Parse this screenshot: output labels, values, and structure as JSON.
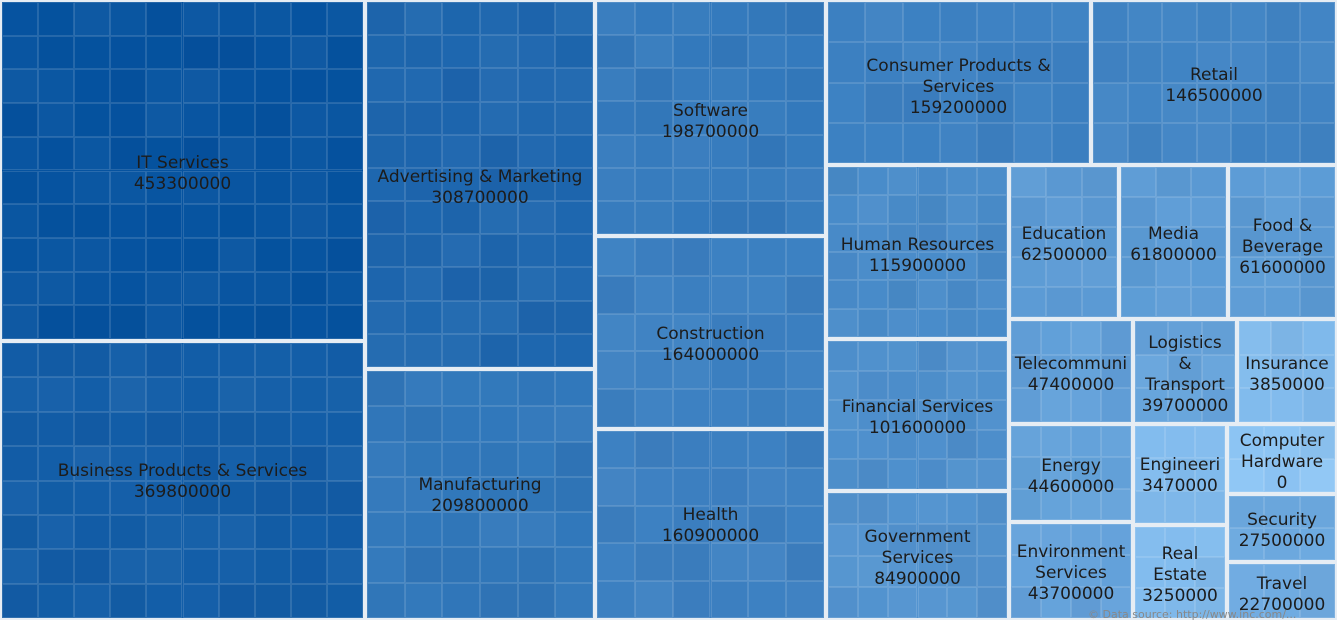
{
  "chart_data": {
    "type": "treemap",
    "title": "",
    "color_range": [
      "#8ec6f5",
      "#0653a0"
    ],
    "items": [
      {
        "name": "IT Services",
        "value": 453300000
      },
      {
        "name": "Business Products & Services",
        "value": 369800000
      },
      {
        "name": "Advertising & Marketing",
        "value": 308700000
      },
      {
        "name": "Manufacturing",
        "value": 209800000
      },
      {
        "name": "Software",
        "value": 198700000
      },
      {
        "name": "Construction",
        "value": 164000000
      },
      {
        "name": "Health",
        "value": 160900000
      },
      {
        "name": "Consumer Products & Services",
        "value": 159200000
      },
      {
        "name": "Retail",
        "value": 146500000
      },
      {
        "name": "Human Resources",
        "value": 115900000
      },
      {
        "name": "Education",
        "value": 62500000
      },
      {
        "name": "Media",
        "value": 61800000
      },
      {
        "name": "Food & Beverage",
        "value": 61600000
      },
      {
        "name": "Financial Services",
        "value": 101600000
      },
      {
        "name": "Telecommunications",
        "value": 47400000
      },
      {
        "name": "Logistics & Transport",
        "value": 39700000
      },
      {
        "name": "Insurance",
        "value": 3850000
      },
      {
        "name": "Energy",
        "value": 44600000
      },
      {
        "name": "Engineering",
        "value": 3470000
      },
      {
        "name": "Computer Hardware",
        "value": 0
      },
      {
        "name": "Security",
        "value": 27500000
      },
      {
        "name": "Government Services",
        "value": 84900000
      },
      {
        "name": "Environment Services",
        "value": 43700000
      },
      {
        "name": "Real Estate",
        "value": 3250000
      },
      {
        "name": "Travel",
        "value": 22700000
      }
    ]
  },
  "credit_text": "© Data source: http://www.inc.com/..."
}
